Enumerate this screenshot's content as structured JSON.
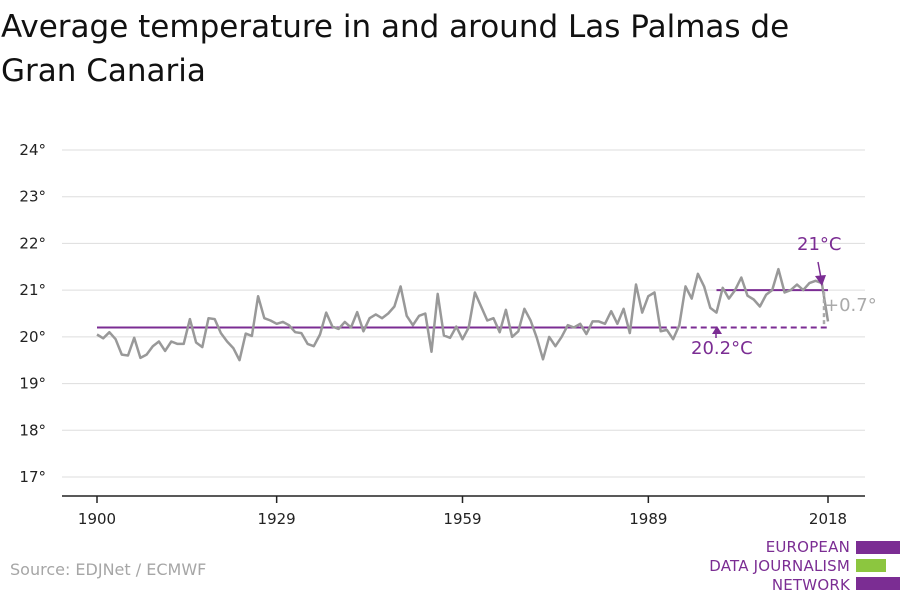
{
  "title_lines": [
    "Average temperature in and around Las Palmas de",
    "Gran Canaria"
  ],
  "source": "Source: EDJNet / ECMWF",
  "logo": {
    "lines": [
      "EUROPEAN",
      "DATA JOURNALISM",
      "NETWORK"
    ],
    "colors": [
      "#7b2d93",
      "#8cc63f",
      "#7b2d93"
    ]
  },
  "colors": {
    "line": "#999999",
    "accent": "#7b2d93",
    "grid": "#dddddd",
    "axis": "#222222"
  },
  "chart_data": {
    "type": "line",
    "title": "Average temperature in and around Las Palmas de Gran Canaria",
    "xlabel": "",
    "ylabel": "",
    "xlim": [
      1900,
      2018
    ],
    "ylim": [
      17,
      24
    ],
    "x_ticks": [
      1900,
      1929,
      1959,
      1989,
      2018
    ],
    "y_ticks": [
      17,
      18,
      19,
      20,
      21,
      22,
      23,
      24
    ],
    "y_tick_suffix": "°",
    "grid": true,
    "series": [
      {
        "x": [
          1900,
          1901,
          1902,
          1903,
          1904,
          1905,
          1906,
          1907,
          1908,
          1909,
          1910,
          1911,
          1912,
          1913,
          1914,
          1915,
          1916,
          1917,
          1918,
          1919,
          1920,
          1921,
          1922,
          1923,
          1924,
          1925,
          1926,
          1927,
          1928,
          1929,
          1930,
          1931,
          1932,
          1933,
          1934,
          1935,
          1936,
          1937,
          1938,
          1939,
          1940,
          1941,
          1942,
          1943,
          1944,
          1945,
          1946,
          1947,
          1948,
          1949,
          1950,
          1951,
          1952,
          1953,
          1954,
          1955,
          1956,
          1957,
          1958,
          1959,
          1960,
          1961,
          1962,
          1963,
          1964,
          1965,
          1966,
          1967,
          1968,
          1969,
          1970,
          1971,
          1972,
          1973,
          1974,
          1975,
          1976,
          1977,
          1978,
          1979,
          1980,
          1981,
          1982,
          1983,
          1984,
          1985,
          1986,
          1987,
          1988,
          1989,
          1990,
          1991,
          1992,
          1993,
          1994,
          1995,
          1996,
          1997,
          1998,
          1999,
          2000,
          2001,
          2002,
          2003,
          2004,
          2005,
          2006,
          2007,
          2008,
          2009,
          2010,
          2011,
          2012,
          2013,
          2014,
          2015,
          2016,
          2017,
          2018
        ],
        "values": [
          20.05,
          19.97,
          20.1,
          19.95,
          19.62,
          19.6,
          19.98,
          19.55,
          19.62,
          19.8,
          19.9,
          19.7,
          19.9,
          19.85,
          19.85,
          20.38,
          19.88,
          19.78,
          20.4,
          20.38,
          20.08,
          19.9,
          19.76,
          19.5,
          20.07,
          20.02,
          20.87,
          20.4,
          20.35,
          20.28,
          20.32,
          20.25,
          20.1,
          20.08,
          19.85,
          19.8,
          20.05,
          20.52,
          20.22,
          20.17,
          20.32,
          20.2,
          20.53,
          20.12,
          20.4,
          20.48,
          20.4,
          20.5,
          20.65,
          21.08,
          20.45,
          20.25,
          20.45,
          20.5,
          19.68,
          20.92,
          20.03,
          19.98,
          20.22,
          19.95,
          20.2,
          20.95,
          20.65,
          20.35,
          20.4,
          20.1,
          20.58,
          20.0,
          20.12,
          20.6,
          20.35,
          19.98,
          19.52,
          20.0,
          19.8,
          20.0,
          20.25,
          20.2,
          20.28,
          20.06,
          20.33,
          20.33,
          20.28,
          20.55,
          20.28,
          20.6,
          20.08,
          21.12,
          20.52,
          20.87,
          20.95,
          20.12,
          20.15,
          19.95,
          20.25,
          21.08,
          20.82,
          21.35,
          21.08,
          20.62,
          20.52,
          21.05,
          20.82,
          21.0,
          21.27,
          20.88,
          20.8,
          20.65,
          20.9,
          21.0,
          21.45,
          20.95,
          21.0,
          21.12,
          21.0,
          21.15,
          21.2,
          21.15,
          20.33
        ]
      }
    ],
    "annotations": {
      "baseline": {
        "value": 20.2,
        "label": "20.2°C",
        "x_start": 1900,
        "x_end": 2018
      },
      "recent": {
        "value": 21,
        "label": "21°C",
        "x_start": 2000,
        "x_end": 2018
      },
      "change": {
        "label": "+0.7°"
      }
    }
  }
}
